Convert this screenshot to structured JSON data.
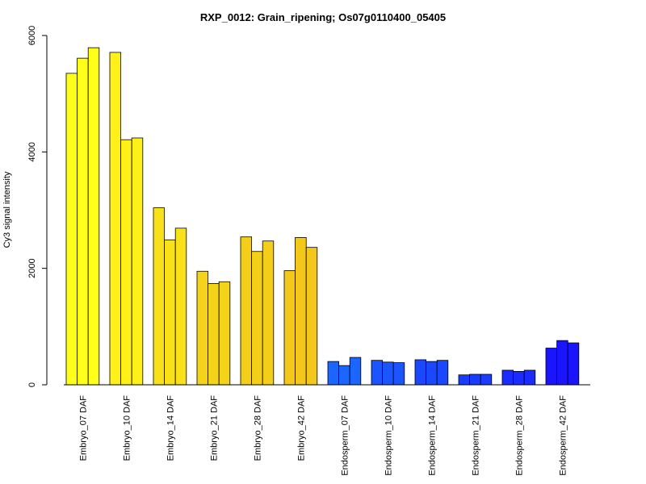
{
  "chart_data": {
    "type": "bar",
    "title": "RXP_0012: Grain_ripening; Os07g0110400_05405",
    "ylabel": "Cy3 signal intensity",
    "xlabel": "",
    "ylim": [
      0,
      6000
    ],
    "yticks": [
      0,
      2000,
      4000,
      6000
    ],
    "grid": false,
    "replicates_per_group": 3,
    "categories": [
      "Embryo_07 DAF",
      "Embryo_10 DAF",
      "Embryo_14 DAF",
      "Embryo_21 DAF",
      "Embryo_28 DAF",
      "Embryo_42 DAF",
      "Endosperm_07 DAF",
      "Endosperm_10 DAF",
      "Endosperm_14 DAF",
      "Endosperm_21 DAF",
      "Endosperm_28 DAF",
      "Endosperm_42 DAF"
    ],
    "values": [
      [
        5350,
        5610,
        5790
      ],
      [
        5710,
        4210,
        4240
      ],
      [
        3040,
        2490,
        2690
      ],
      [
        1950,
        1740,
        1770
      ],
      [
        2540,
        2290,
        2470
      ],
      [
        1960,
        2530,
        2360
      ],
      [
        400,
        330,
        470
      ],
      [
        420,
        390,
        380
      ],
      [
        430,
        400,
        420
      ],
      [
        170,
        180,
        180
      ],
      [
        250,
        230,
        250
      ],
      [
        630,
        760,
        720
      ]
    ],
    "colors": [
      "#ffff1a",
      "#fff01a",
      "#f9e11a",
      "#f4d41a",
      "#f4cf1a",
      "#f4c81a",
      "#1a66ff",
      "#1a55ff",
      "#1a48ff",
      "#1a3cff",
      "#1a2cff",
      "#1a14ff"
    ]
  }
}
